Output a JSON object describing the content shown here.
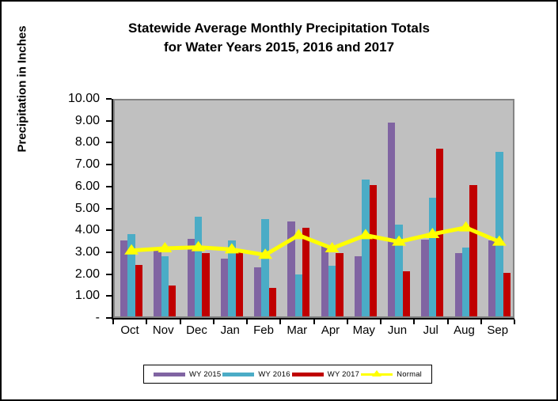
{
  "title": {
    "line1": "Statewide Average Monthly Precipitation Totals",
    "line2": "for Water Years 2015, 2016 and 2017"
  },
  "y_axis": {
    "label": "Precipitation in Inches",
    "tick_labels": [
      "10.00",
      "9.00",
      "8.00",
      "7.00",
      "6.00",
      "5.00",
      "4.00",
      "3.00",
      "2.00",
      "1.00",
      "-"
    ],
    "min": 0,
    "max": 10,
    "step": 1
  },
  "colors": {
    "wy2015": "#8064A2",
    "wy2016": "#4BACC6",
    "wy2017": "#C00000",
    "normal": "#FFFF00",
    "plot_background": "#C0C0C0",
    "plot_border": "#848484"
  },
  "chart_data": {
    "type": "bar",
    "title": "Statewide Average Monthly Precipitation Totals for Water Years 2015, 2016 and 2017",
    "ylabel": "Precipitation in Inches",
    "ylim": [
      0,
      10
    ],
    "grid": false,
    "legend_position": "bottom",
    "plot_background": "#C0C0C0",
    "categories": [
      "Oct",
      "Nov",
      "Dec",
      "Jan",
      "Feb",
      "Mar",
      "Apr",
      "May",
      "Jun",
      "Jul",
      "Aug",
      "Sep"
    ],
    "series": [
      {
        "name": "WY 2015",
        "type": "bar",
        "color": "#8064A2",
        "values": [
          3.45,
          3.15,
          3.55,
          2.65,
          2.25,
          4.35,
          3.25,
          2.75,
          8.85,
          3.5,
          2.9,
          3.45
        ]
      },
      {
        "name": "WY 2016",
        "type": "bar",
        "color": "#4BACC6",
        "values": [
          3.75,
          2.75,
          4.55,
          3.45,
          4.45,
          1.9,
          2.3,
          6.25,
          4.2,
          5.4,
          3.15,
          7.5
        ]
      },
      {
        "name": "WY 2017",
        "type": "bar",
        "color": "#C00000",
        "values": [
          2.35,
          1.4,
          2.9,
          3.05,
          1.3,
          4.05,
          2.9,
          6.0,
          2.05,
          7.65,
          6.0,
          2.0
        ]
      },
      {
        "name": "Normal",
        "type": "line",
        "color": "#FFFF00",
        "marker": "triangle",
        "values": [
          3.15,
          3.25,
          3.3,
          3.2,
          2.95,
          3.85,
          3.25,
          3.85,
          3.55,
          3.9,
          4.2,
          3.55
        ]
      }
    ]
  }
}
